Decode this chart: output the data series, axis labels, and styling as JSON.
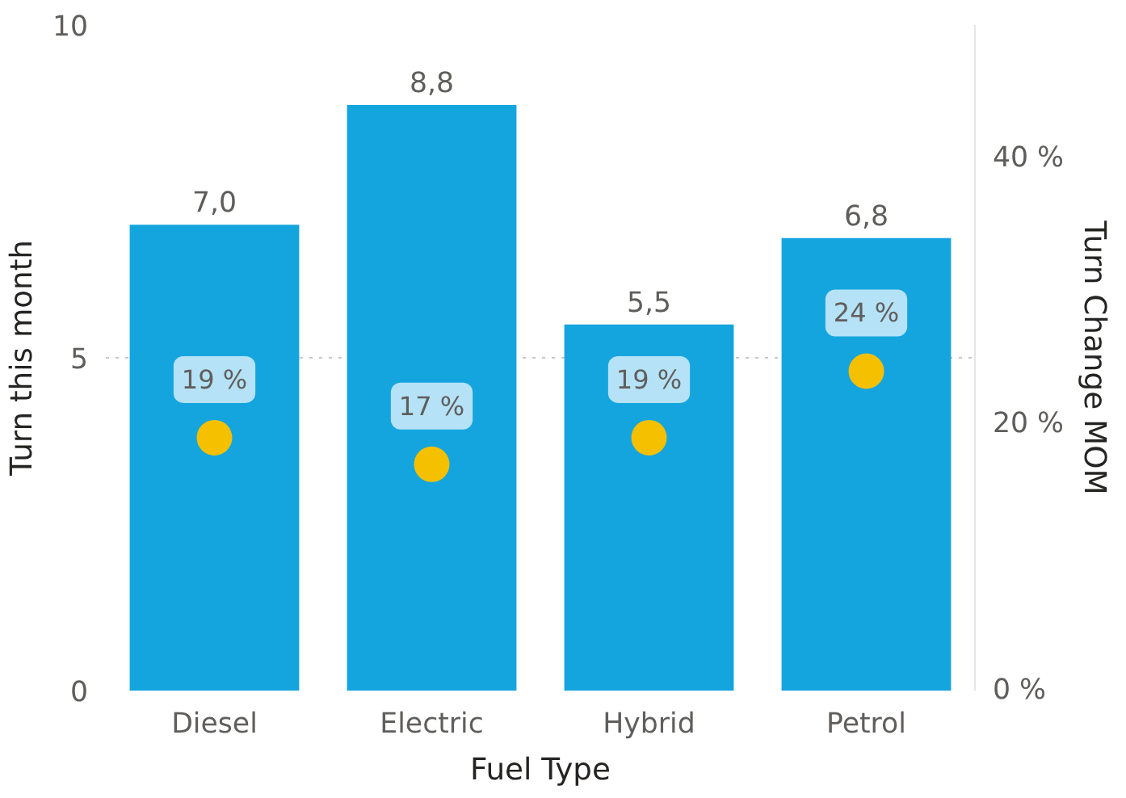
{
  "chart_data": {
    "type": "bar",
    "xlabel": "Fuel Type",
    "ylabel": "Turn this month",
    "y2label": "Turn Change MOM",
    "categories": [
      "Diesel",
      "Electric",
      "Hybrid",
      "Petrol"
    ],
    "ylim": [
      0,
      10
    ],
    "yticks": [
      0,
      5,
      10
    ],
    "y2lim": [
      0,
      50
    ],
    "y2ticks": [
      {
        "value": 0,
        "label": "0 %"
      },
      {
        "value": 20,
        "label": "20 %"
      },
      {
        "value": 40,
        "label": "40 %"
      }
    ],
    "grid": "y",
    "series": [
      {
        "color": "#14a5de",
        "values": [
          7.0,
          8.8,
          5.5,
          6.8
        ],
        "value_labels": [
          "7,0",
          "8,8",
          "5,5",
          "6,8"
        ]
      },
      {
        "type": "scatter",
        "axis": "y2",
        "color": "#f5c000",
        "marker": "circle",
        "values": [
          19,
          17,
          19,
          24
        ],
        "value_labels": [
          "19 %",
          "17 %",
          "19 %",
          "24 %"
        ]
      }
    ]
  }
}
